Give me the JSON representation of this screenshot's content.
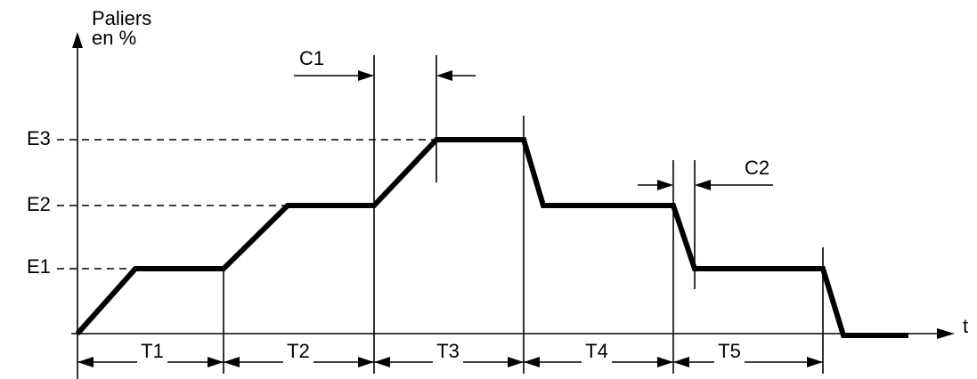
{
  "axes": {
    "y_label_line1": "Paliers",
    "y_label_line2": "en %",
    "x_label": "t"
  },
  "levels": [
    "E1",
    "E2",
    "E3"
  ],
  "periods": [
    "T1",
    "T2",
    "T3",
    "T4",
    "T5"
  ],
  "ramps": [
    "C1",
    "C2"
  ]
}
